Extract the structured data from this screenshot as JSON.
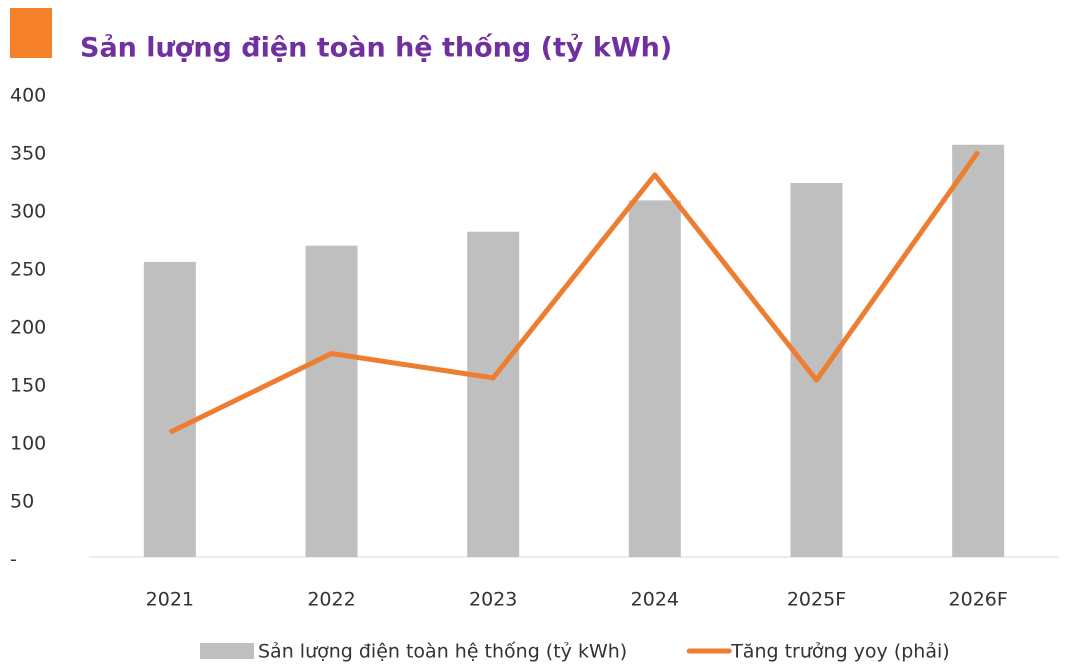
{
  "chart_data": {
    "type": "bar_line",
    "title": "Sản lượng điện toàn hệ thống (tỷ kWh)",
    "categories": [
      "2021",
      "2022",
      "2023",
      "2024",
      "2025F",
      "2026F"
    ],
    "series": [
      {
        "name": "Sản lượng điện toàn hệ thống (tỷ kWh)",
        "type": "bar",
        "color": "#bfbfbf",
        "values": [
          257,
          271,
          283,
          310,
          325,
          358
        ]
      },
      {
        "name": "Tăng trưởng yoy (phải)",
        "type": "line",
        "color": "#ed7d31",
        "values": [
          110,
          178,
          157,
          332,
          155,
          352
        ]
      }
    ],
    "ylim": [
      0,
      400
    ],
    "yticks": [
      {
        "value": 0,
        "label": "-"
      },
      50,
      100,
      150,
      200,
      250,
      300,
      350,
      400
    ],
    "grid": false,
    "legend": "bottom"
  }
}
